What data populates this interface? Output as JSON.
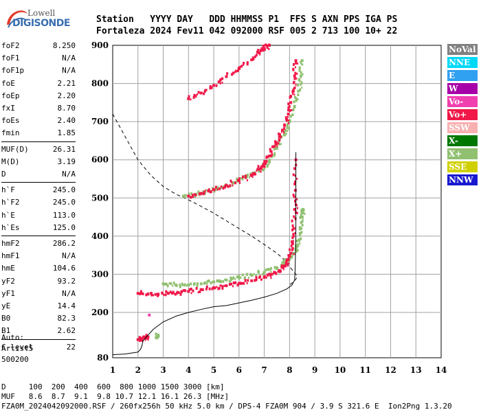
{
  "logo": {
    "top": "Lowell",
    "bottom": "DIGISONDE"
  },
  "header": {
    "line1": "Station   YYYY DAY   DDD HHMMSS P1  FFS S AXN PPS IGA PS",
    "line2": "Fortaleza 2024 Fev11 042 092000 RSF 005 2 713 100 10+ 22"
  },
  "params": [
    {
      "label": "foF2",
      "value": "8.250"
    },
    {
      "label": "foF1",
      "value": "N/A"
    },
    {
      "label": "foF1p",
      "value": "N/A"
    },
    {
      "label": "foE",
      "value": "2.21"
    },
    {
      "label": "foEp",
      "value": "2.20"
    },
    {
      "label": "fxI",
      "value": "8.70"
    },
    {
      "label": "foEs",
      "value": "2.40"
    },
    {
      "label": "fmin",
      "value": "1.85"
    },
    {
      "label": "MUF(D)",
      "value": "26.31"
    },
    {
      "label": "M(D)",
      "value": "3.19"
    },
    {
      "label": "D",
      "value": "N/A"
    },
    {
      "label": "h`F",
      "value": "245.0"
    },
    {
      "label": "h`F2",
      "value": "245.0"
    },
    {
      "label": "h`E",
      "value": "113.0"
    },
    {
      "label": "h`Es",
      "value": "125.0"
    },
    {
      "label": "hmF2",
      "value": "286.2"
    },
    {
      "label": "hmF1",
      "value": "N/A"
    },
    {
      "label": "hmE",
      "value": "104.6"
    },
    {
      "label": "yF2",
      "value": "93.2"
    },
    {
      "label": "yF1",
      "value": "N/A"
    },
    {
      "label": "yE",
      "value": "14.4"
    },
    {
      "label": "B0",
      "value": "82.3"
    },
    {
      "label": "B1",
      "value": "2.62"
    },
    {
      "label": "C-level",
      "value": "22"
    }
  ],
  "auto": {
    "line1": "Auto:",
    "line2": "Artist5",
    "line3": "500200"
  },
  "footer": {
    "d_row": "D     100  200  400  600  800 1000 1500 3000 [km]",
    "muf_row": "MUF   8.6  8.7  9.1  9.8 10.7 12.1 16.1 26.3 [MHz]",
    "file_row": "FZA0M_2024042092000.RSF / 260fx256h 50 kHz 5.0 km / DPS-4 FZA0M 904 / 3.9 S 321.6 E  Ion2Png 1.3.20"
  },
  "legend": [
    {
      "label": "NoVal",
      "color": "#808080"
    },
    {
      "label": "NNE",
      "color": "#00d8f8"
    },
    {
      "label": "E",
      "color": "#30a0f0"
    },
    {
      "label": "W",
      "color": "#a800a8"
    },
    {
      "label": "Vo-",
      "color": "#f040b0"
    },
    {
      "label": "Vo+",
      "color": "#f01848"
    },
    {
      "label": "SSW",
      "color": "#f8b0b0"
    },
    {
      "label": "X-",
      "color": "#007800"
    },
    {
      "label": "X+",
      "color": "#90c070"
    },
    {
      "label": "SSE",
      "color": "#d0d000"
    },
    {
      "label": "NNW",
      "color": "#1818d0"
    }
  ],
  "chart_data": {
    "type": "scatter",
    "x_ticks": [
      1,
      2,
      3,
      4,
      5,
      6,
      7,
      8,
      9,
      10,
      11,
      12,
      13,
      14
    ],
    "y_ticks": [
      80,
      200,
      300,
      400,
      500,
      600,
      700,
      800,
      900
    ],
    "xlim": [
      1,
      14
    ],
    "ylim": [
      80,
      900
    ],
    "grid": true,
    "legend_position": "right",
    "colors": {
      "o_mode": "#f01848",
      "x_mode": "#90c070",
      "x_minus": "#007800",
      "es": "#f040b0"
    },
    "series": [
      {
        "trace": "o-mode F trace",
        "x": [
          2.0,
          2.4,
          2.8,
          3.2,
          3.6,
          4.0,
          4.5,
          5.0,
          5.5,
          6.0,
          6.5,
          7.0,
          7.3,
          7.6,
          7.8,
          7.95,
          8.05,
          8.12,
          8.17,
          8.2,
          8.23,
          8.25
        ],
        "y": [
          250,
          248,
          248,
          250,
          252,
          255,
          260,
          265,
          270,
          276,
          283,
          292,
          300,
          310,
          322,
          338,
          355,
          380,
          420,
          470,
          520,
          600
        ]
      },
      {
        "trace": "x-mode F trace",
        "x": [
          3.0,
          3.5,
          4.0,
          4.5,
          5.0,
          5.5,
          6.0,
          6.5,
          7.0,
          7.5,
          7.8,
          8.05,
          8.25,
          8.38,
          8.45,
          8.5,
          8.53
        ],
        "y": [
          275,
          272,
          272,
          275,
          280,
          285,
          292,
          298,
          305,
          315,
          328,
          345,
          365,
          390,
          420,
          450,
          470
        ]
      },
      {
        "trace": "o-mode 2nd hop",
        "x": [
          4.0,
          4.5,
          5.0,
          5.5,
          6.0,
          6.5,
          6.8,
          7.0,
          7.2,
          7.4,
          7.6,
          7.8,
          7.95,
          8.05,
          8.15,
          8.2,
          8.25
        ],
        "y": [
          505,
          512,
          522,
          533,
          545,
          560,
          575,
          590,
          610,
          635,
          660,
          690,
          720,
          750,
          780,
          820,
          860
        ]
      },
      {
        "trace": "x-mode 2nd hop",
        "x": [
          3.8,
          4.3,
          4.8,
          5.3,
          5.8,
          6.3,
          6.8,
          7.2,
          7.5,
          7.8,
          8.0,
          8.2,
          8.35,
          8.45,
          8.5
        ],
        "y": [
          505,
          510,
          518,
          528,
          540,
          555,
          570,
          595,
          630,
          665,
          700,
          740,
          780,
          820,
          860
        ]
      },
      {
        "trace": "o-mode 3rd hop",
        "x": [
          4.0,
          4.5,
          5.0,
          5.5,
          6.0,
          6.5,
          6.8,
          7.0,
          7.2
        ],
        "y": [
          760,
          775,
          795,
          818,
          840,
          862,
          880,
          892,
          900
        ]
      },
      {
        "trace": "Es o-mode",
        "x": [
          2.0,
          2.15,
          2.3,
          2.4
        ],
        "y": [
          128,
          130,
          132,
          135
        ]
      },
      {
        "trace": "Es x-mode",
        "x": [
          2.75,
          2.8
        ],
        "y": [
          135,
          140
        ]
      },
      {
        "trace": "Es isolated",
        "x": [
          2.45
        ],
        "y": [
          193
        ]
      }
    ],
    "profile_solid": {
      "x": [
        1,
        1.5,
        2.0,
        2.1,
        2.15,
        2.2,
        2.6,
        3.0,
        3.5,
        4.0,
        4.5,
        5.0,
        5.5,
        6.0,
        6.5,
        7.0,
        7.5,
        7.9,
        8.1,
        8.2,
        8.22,
        8.25,
        8.25,
        8.25
      ],
      "y": [
        88,
        90,
        95,
        102,
        110,
        125,
        155,
        175,
        190,
        200,
        208,
        215,
        218,
        225,
        232,
        240,
        250,
        262,
        272,
        285,
        310,
        400,
        500,
        620
      ]
    },
    "profile_dashed": {
      "x": [
        1.0,
        1.5,
        2.0,
        2.5,
        3.0,
        3.5,
        4.0,
        4.5,
        5.0,
        5.5,
        6.0,
        6.5,
        7.0,
        7.5,
        7.8,
        8.0,
        8.15,
        8.25,
        8.3,
        8.25,
        8.15,
        8.0
      ],
      "y": [
        720,
        660,
        600,
        560,
        530,
        510,
        495,
        478,
        460,
        440,
        420,
        400,
        378,
        355,
        338,
        320,
        308,
        300,
        295,
        287,
        280,
        272
      ]
    }
  }
}
